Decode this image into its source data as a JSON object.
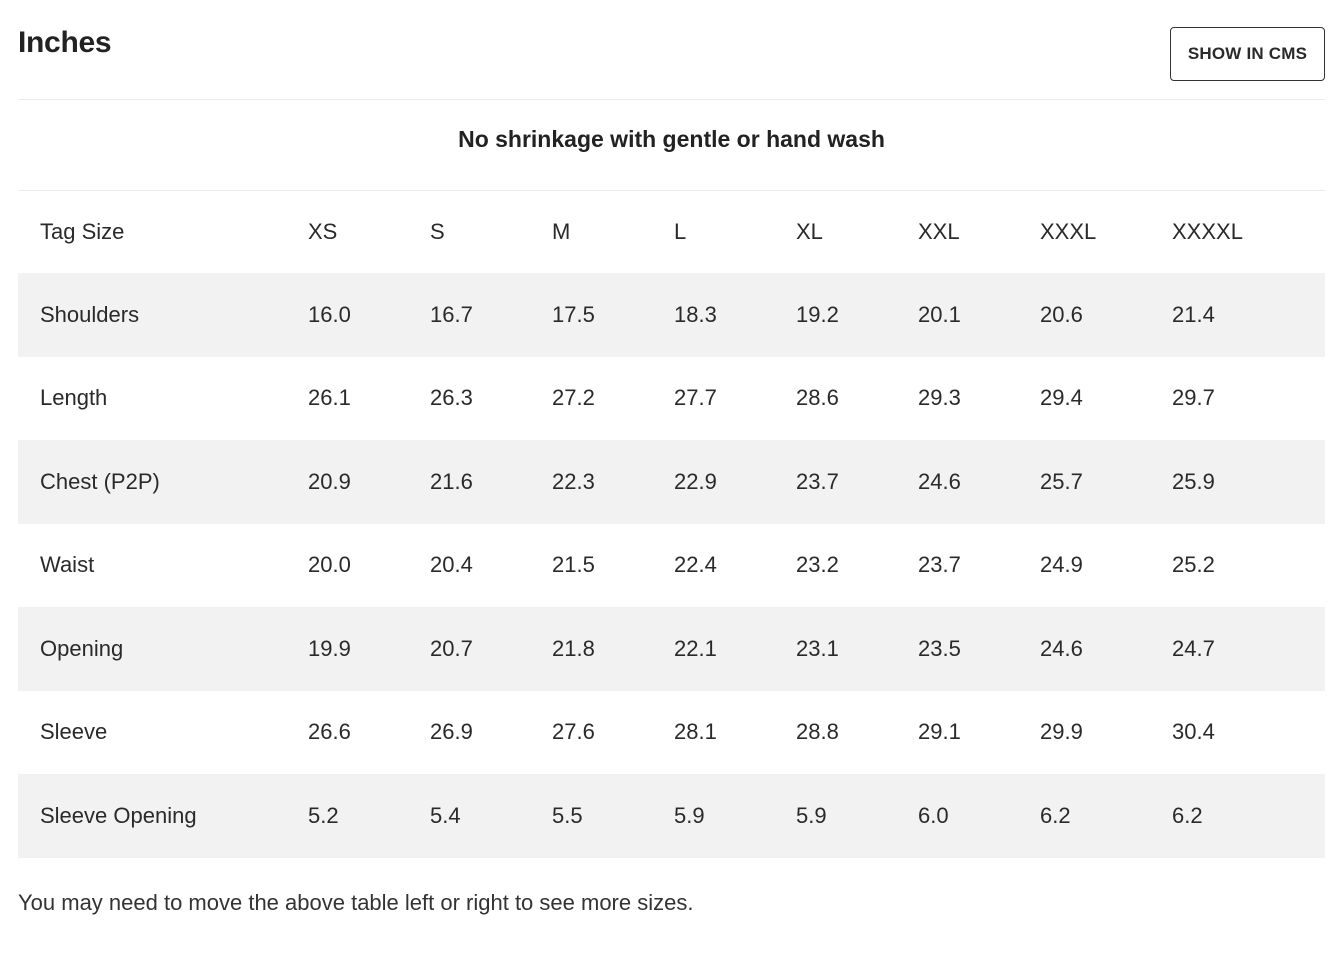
{
  "header": {
    "title": "Inches",
    "cms_button_label": "SHOW IN CMS"
  },
  "subtitle": "No shrinkage with gentle or hand wash",
  "table": {
    "row_header_label": "Tag Size",
    "sizes": [
      "XS",
      "S",
      "M",
      "L",
      "XL",
      "XXL",
      "XXXL",
      "XXXXL"
    ],
    "rows": [
      {
        "label": "Shoulders",
        "values": [
          "16.0",
          "16.7",
          "17.5",
          "18.3",
          "19.2",
          "20.1",
          "20.6",
          "21.4"
        ]
      },
      {
        "label": "Length",
        "values": [
          "26.1",
          "26.3",
          "27.2",
          "27.7",
          "28.6",
          "29.3",
          "29.4",
          "29.7"
        ]
      },
      {
        "label": "Chest (P2P)",
        "values": [
          "20.9",
          "21.6",
          "22.3",
          "22.9",
          "23.7",
          "24.6",
          "25.7",
          "25.9"
        ]
      },
      {
        "label": "Waist",
        "values": [
          "20.0",
          "20.4",
          "21.5",
          "22.4",
          "23.2",
          "23.7",
          "24.9",
          "25.2"
        ]
      },
      {
        "label": "Opening",
        "values": [
          "19.9",
          "20.7",
          "21.8",
          "22.1",
          "23.1",
          "23.5",
          "24.6",
          "24.7"
        ]
      },
      {
        "label": "Sleeve",
        "values": [
          "26.6",
          "26.9",
          "27.6",
          "28.1",
          "28.8",
          "29.1",
          "29.9",
          "30.4"
        ]
      },
      {
        "label": "Sleeve Opening",
        "values": [
          "5.2",
          "5.4",
          "5.5",
          "5.9",
          "5.9",
          "6.0",
          "6.2",
          "6.2"
        ]
      }
    ]
  },
  "footnote": "You may need to move the above table left or right to see more sizes."
}
